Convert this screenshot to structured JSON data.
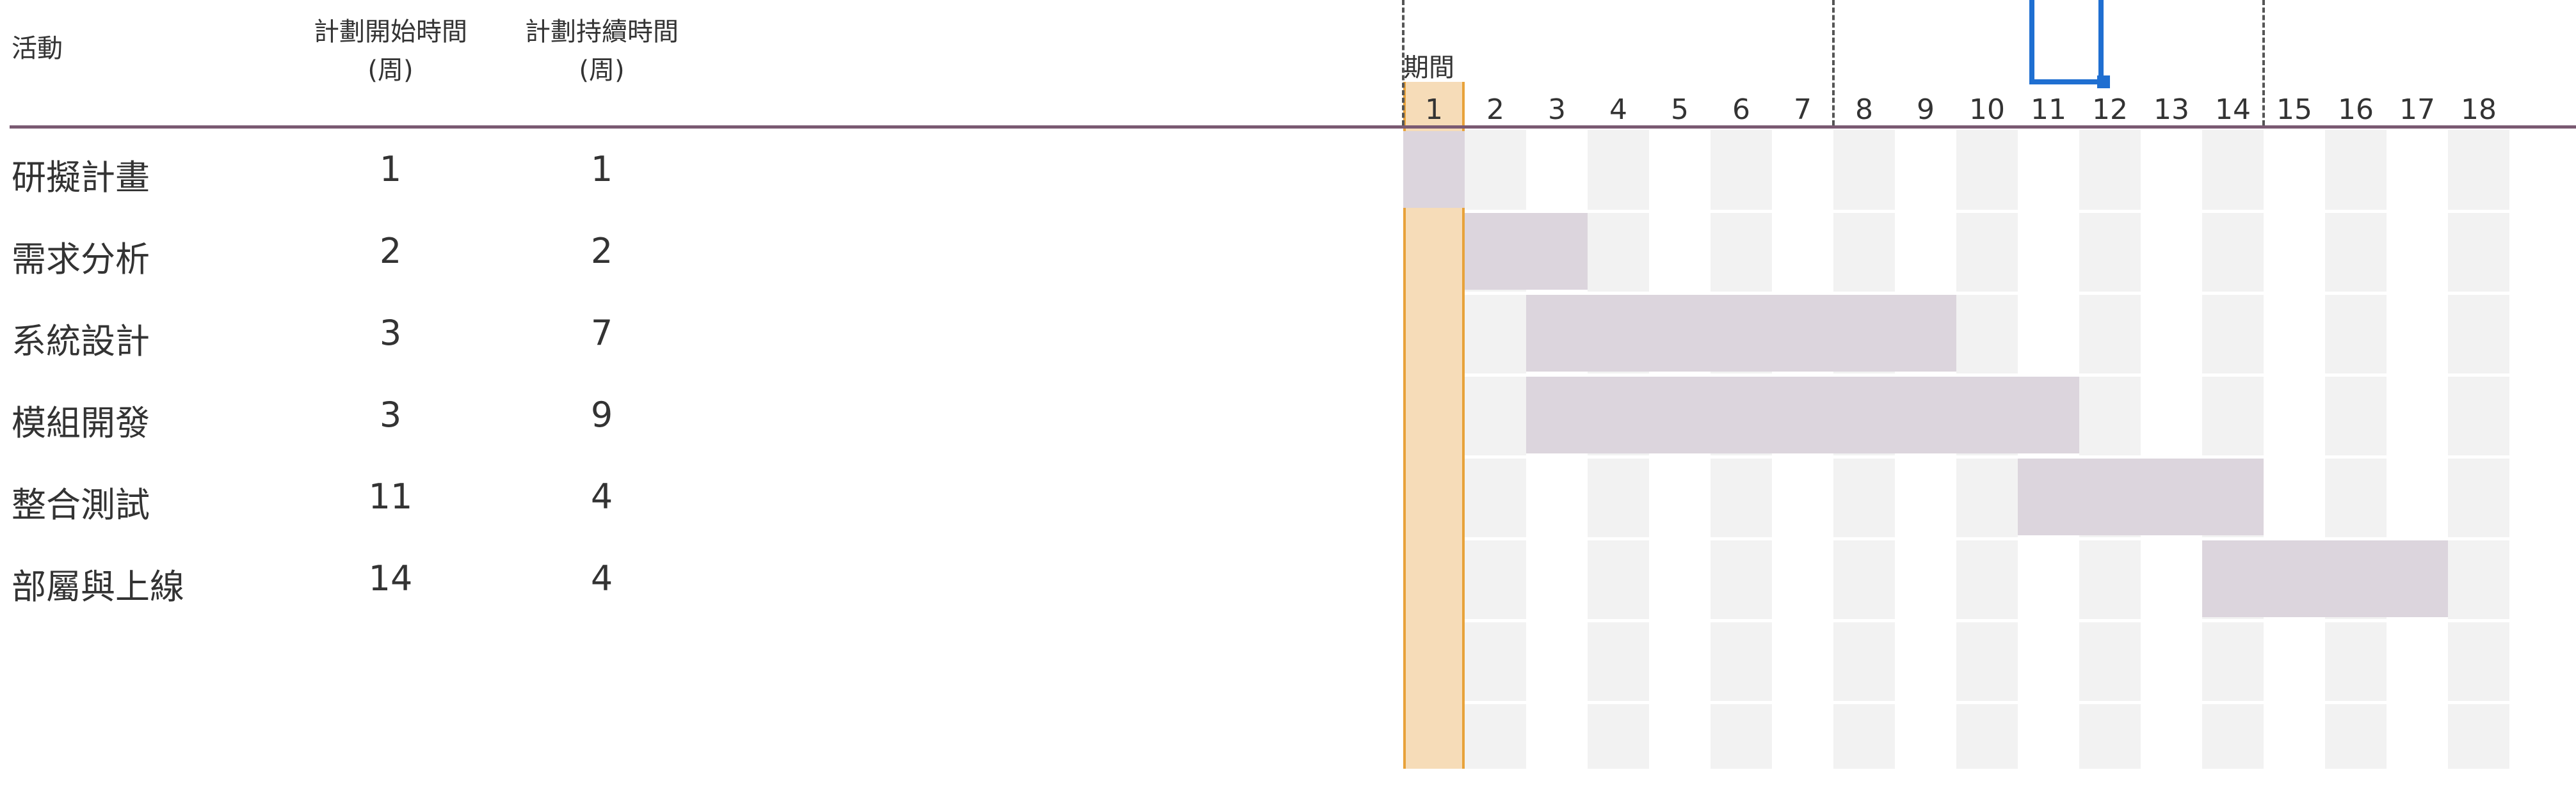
{
  "headers": {
    "activity": "活動",
    "plan_start": "計劃開始時間",
    "plan_start_unit": "(周)",
    "plan_duration": "計劃持續時間",
    "plan_duration_unit": "(周)",
    "period": "期間"
  },
  "period_numbers": [
    "1",
    "2",
    "3",
    "4",
    "5",
    "6",
    "7",
    "8",
    "9",
    "10",
    "11",
    "12",
    "13",
    "14",
    "15",
    "16",
    "17",
    "18"
  ],
  "current_period": 1,
  "activities": [
    {
      "name": "研擬計畫",
      "start": 1,
      "duration": 1
    },
    {
      "name": "需求分析",
      "start": 2,
      "duration": 2
    },
    {
      "name": "系統設計",
      "start": 3,
      "duration": 7
    },
    {
      "name": "模組開發",
      "start": 3,
      "duration": 9
    },
    {
      "name": "整合測試",
      "start": 11,
      "duration": 4
    },
    {
      "name": "部屬與上線",
      "start": 14,
      "duration": 4
    }
  ],
  "colors": {
    "accent_border": "#e8a23a",
    "current_period_fill": "#f6dcb8",
    "plan_bar": "#dcd5dd",
    "header_rule": "#7a5a72",
    "selection": "#1f6fd1"
  }
}
